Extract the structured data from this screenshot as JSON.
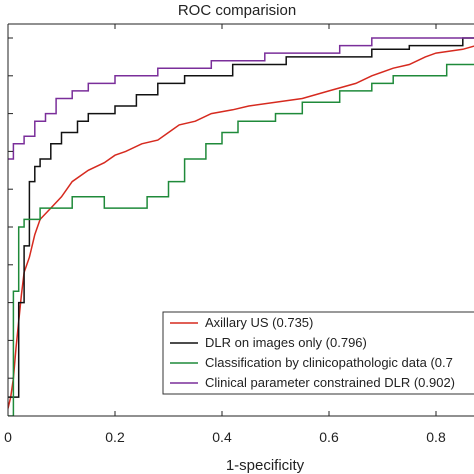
{
  "chart_data": {
    "type": "line",
    "title": "ROC comparision",
    "xlabel": "1-specificity",
    "ylabel": "",
    "xlim": [
      0,
      0.92
    ],
    "ylim": [
      0,
      1
    ],
    "x_ticks": [
      0,
      0.2,
      0.4,
      0.6,
      0.8
    ],
    "x_tick_labels": [
      "0",
      "0.2",
      "0.4",
      "0.6",
      "0.8"
    ],
    "grid": false,
    "legend_position": "bottom-right",
    "series": [
      {
        "name": "Axillary US (0.735)",
        "color": "#d62a1f",
        "points": [
          [
            0,
            0.02
          ],
          [
            0.005,
            0.05
          ],
          [
            0.01,
            0.1
          ],
          [
            0.015,
            0.18
          ],
          [
            0.02,
            0.25
          ],
          [
            0.025,
            0.32
          ],
          [
            0.03,
            0.38
          ],
          [
            0.04,
            0.42
          ],
          [
            0.05,
            0.48
          ],
          [
            0.06,
            0.52
          ],
          [
            0.08,
            0.55
          ],
          [
            0.1,
            0.58
          ],
          [
            0.12,
            0.62
          ],
          [
            0.15,
            0.65
          ],
          [
            0.18,
            0.67
          ],
          [
            0.2,
            0.69
          ],
          [
            0.22,
            0.7
          ],
          [
            0.25,
            0.72
          ],
          [
            0.28,
            0.73
          ],
          [
            0.3,
            0.75
          ],
          [
            0.32,
            0.77
          ],
          [
            0.35,
            0.78
          ],
          [
            0.38,
            0.8
          ],
          [
            0.42,
            0.81
          ],
          [
            0.45,
            0.82
          ],
          [
            0.5,
            0.83
          ],
          [
            0.55,
            0.84
          ],
          [
            0.6,
            0.86
          ],
          [
            0.65,
            0.88
          ],
          [
            0.68,
            0.9
          ],
          [
            0.72,
            0.92
          ],
          [
            0.75,
            0.93
          ],
          [
            0.78,
            0.95
          ],
          [
            0.8,
            0.96
          ],
          [
            0.85,
            0.97
          ],
          [
            0.9,
            0.99
          ],
          [
            0.92,
            1.0
          ]
        ]
      },
      {
        "name": "DLR on images only (0.796)",
        "color": "#111111",
        "points": [
          [
            0,
            0.05
          ],
          [
            0.02,
            0.05
          ],
          [
            0.02,
            0.3
          ],
          [
            0.03,
            0.3
          ],
          [
            0.03,
            0.45
          ],
          [
            0.04,
            0.45
          ],
          [
            0.04,
            0.62
          ],
          [
            0.05,
            0.62
          ],
          [
            0.05,
            0.66
          ],
          [
            0.06,
            0.66
          ],
          [
            0.06,
            0.68
          ],
          [
            0.08,
            0.68
          ],
          [
            0.08,
            0.72
          ],
          [
            0.1,
            0.72
          ],
          [
            0.1,
            0.75
          ],
          [
            0.13,
            0.75
          ],
          [
            0.13,
            0.78
          ],
          [
            0.15,
            0.78
          ],
          [
            0.15,
            0.8
          ],
          [
            0.2,
            0.8
          ],
          [
            0.2,
            0.82
          ],
          [
            0.24,
            0.82
          ],
          [
            0.24,
            0.85
          ],
          [
            0.28,
            0.85
          ],
          [
            0.28,
            0.88
          ],
          [
            0.33,
            0.88
          ],
          [
            0.33,
            0.9
          ],
          [
            0.42,
            0.9
          ],
          [
            0.42,
            0.93
          ],
          [
            0.52,
            0.93
          ],
          [
            0.52,
            0.95
          ],
          [
            0.68,
            0.95
          ],
          [
            0.68,
            0.97
          ],
          [
            0.75,
            0.97
          ],
          [
            0.75,
            0.98
          ],
          [
            0.85,
            0.98
          ],
          [
            0.85,
            1.0
          ],
          [
            0.92,
            1.0
          ]
        ]
      },
      {
        "name": "Classification by clinicopathologic data (0.7",
        "color": "#1f8a3a",
        "points": [
          [
            0,
            0.0
          ],
          [
            0.01,
            0.0
          ],
          [
            0.01,
            0.33
          ],
          [
            0.02,
            0.33
          ],
          [
            0.02,
            0.5
          ],
          [
            0.03,
            0.5
          ],
          [
            0.03,
            0.52
          ],
          [
            0.06,
            0.52
          ],
          [
            0.06,
            0.55
          ],
          [
            0.12,
            0.55
          ],
          [
            0.12,
            0.58
          ],
          [
            0.18,
            0.58
          ],
          [
            0.18,
            0.55
          ],
          [
            0.26,
            0.55
          ],
          [
            0.26,
            0.58
          ],
          [
            0.3,
            0.58
          ],
          [
            0.3,
            0.62
          ],
          [
            0.33,
            0.62
          ],
          [
            0.33,
            0.68
          ],
          [
            0.37,
            0.68
          ],
          [
            0.37,
            0.72
          ],
          [
            0.4,
            0.72
          ],
          [
            0.4,
            0.75
          ],
          [
            0.43,
            0.75
          ],
          [
            0.43,
            0.78
          ],
          [
            0.5,
            0.78
          ],
          [
            0.5,
            0.8
          ],
          [
            0.55,
            0.8
          ],
          [
            0.55,
            0.83
          ],
          [
            0.62,
            0.83
          ],
          [
            0.62,
            0.86
          ],
          [
            0.68,
            0.86
          ],
          [
            0.68,
            0.88
          ],
          [
            0.72,
            0.88
          ],
          [
            0.72,
            0.9
          ],
          [
            0.82,
            0.9
          ],
          [
            0.82,
            0.93
          ],
          [
            0.88,
            0.93
          ],
          [
            0.88,
            0.97
          ],
          [
            0.9,
            0.97
          ],
          [
            0.9,
            1.0
          ],
          [
            0.92,
            1.0
          ]
        ]
      },
      {
        "name": "Clinical parameter constrained DLR (0.902)",
        "color": "#7a2e9a",
        "points": [
          [
            0,
            0.68
          ],
          [
            0.01,
            0.68
          ],
          [
            0.01,
            0.72
          ],
          [
            0.03,
            0.72
          ],
          [
            0.03,
            0.74
          ],
          [
            0.05,
            0.74
          ],
          [
            0.05,
            0.78
          ],
          [
            0.07,
            0.78
          ],
          [
            0.07,
            0.8
          ],
          [
            0.09,
            0.8
          ],
          [
            0.09,
            0.84
          ],
          [
            0.12,
            0.84
          ],
          [
            0.12,
            0.86
          ],
          [
            0.15,
            0.86
          ],
          [
            0.15,
            0.88
          ],
          [
            0.2,
            0.88
          ],
          [
            0.2,
            0.9
          ],
          [
            0.28,
            0.9
          ],
          [
            0.28,
            0.92
          ],
          [
            0.38,
            0.92
          ],
          [
            0.38,
            0.94
          ],
          [
            0.48,
            0.94
          ],
          [
            0.48,
            0.96
          ],
          [
            0.62,
            0.96
          ],
          [
            0.62,
            0.98
          ],
          [
            0.68,
            0.98
          ],
          [
            0.68,
            1.0
          ],
          [
            0.92,
            1.0
          ]
        ]
      }
    ]
  }
}
